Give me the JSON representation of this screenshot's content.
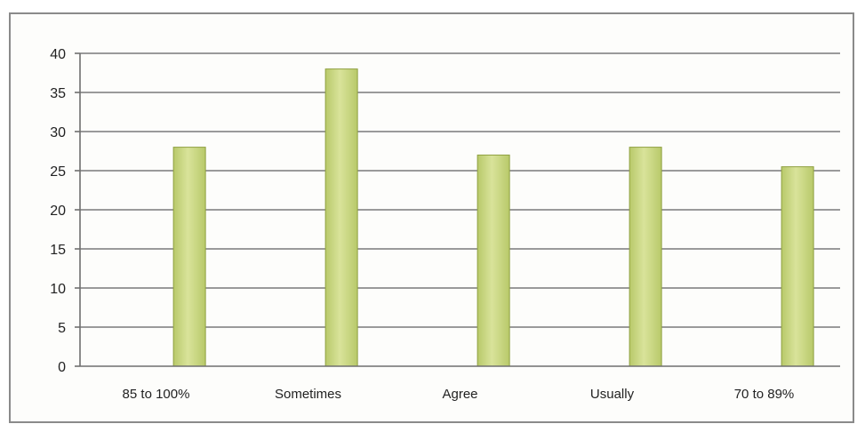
{
  "chart_data": {
    "type": "bar",
    "categories": [
      "85 to 100%",
      "Sometimes",
      "Agree",
      "Usually",
      "70 to 89%"
    ],
    "values": [
      28,
      38,
      27,
      28,
      25.5
    ],
    "yticks": [
      "0",
      "5",
      "10",
      "15",
      "20",
      "25",
      "30",
      "35",
      "40"
    ],
    "ylim": [
      0,
      40
    ],
    "grid": true,
    "legend": "none",
    "colors": {
      "bar_fill": "#b8c96a",
      "bar_highlight": "#d9e39a",
      "bar_edge": "#8fa040"
    }
  }
}
